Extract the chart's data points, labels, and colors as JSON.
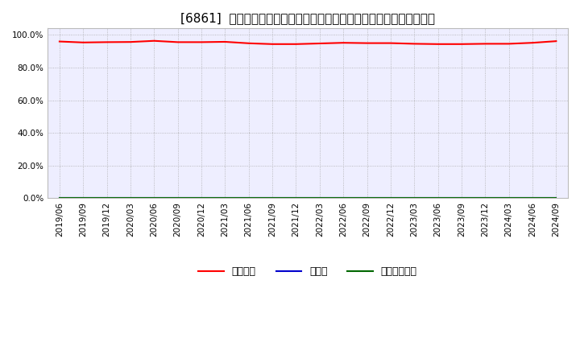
{
  "title": "[6861]  自己資本、のれん、繰延税金資産の総資産に対する比率の推移",
  "x_labels": [
    "2019/06",
    "2019/09",
    "2019/12",
    "2020/03",
    "2020/06",
    "2020/09",
    "2020/12",
    "2021/03",
    "2021/06",
    "2021/09",
    "2021/12",
    "2022/03",
    "2022/06",
    "2022/09",
    "2022/12",
    "2023/03",
    "2023/06",
    "2023/09",
    "2023/12",
    "2024/03",
    "2024/06",
    "2024/09"
  ],
  "equity_ratio": [
    0.96,
    0.954,
    0.956,
    0.957,
    0.964,
    0.956,
    0.956,
    0.958,
    0.949,
    0.944,
    0.944,
    0.948,
    0.952,
    0.95,
    0.95,
    0.946,
    0.944,
    0.944,
    0.946,
    0.946,
    0.952,
    0.962
  ],
  "goodwill_ratio": [
    0.0,
    0.0,
    0.0,
    0.0,
    0.0,
    0.0,
    0.0,
    0.0,
    0.0,
    0.0,
    0.0,
    0.0,
    0.0,
    0.0,
    0.0,
    0.0,
    0.0,
    0.0,
    0.0,
    0.0,
    0.0,
    0.0
  ],
  "deferred_tax_ratio": [
    0.0,
    0.0,
    0.0,
    0.0,
    0.0,
    0.0,
    0.0,
    0.0,
    0.0,
    0.0,
    0.0,
    0.0,
    0.0,
    0.0,
    0.0,
    0.0,
    0.0,
    0.0,
    0.0,
    0.0,
    0.0,
    0.0
  ],
  "equity_color": "#ff0000",
  "goodwill_color": "#0000cc",
  "deferred_tax_color": "#006600",
  "background_color": "#ffffff",
  "plot_bg_color": "#eeeeff",
  "grid_color": "#aaaaaa",
  "ylim": [
    0.0,
    1.04
  ],
  "yticks": [
    0.0,
    0.2,
    0.4,
    0.6,
    0.8,
    1.0
  ],
  "legend_labels": [
    "自己資本",
    "のれん",
    "繰延税金資産"
  ],
  "title_fontsize": 11,
  "tick_fontsize": 7.5,
  "legend_fontsize": 9
}
